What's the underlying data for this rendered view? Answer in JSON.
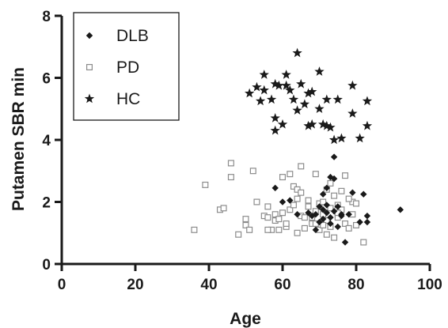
{
  "chart_data": {
    "type": "scatter",
    "title": "",
    "xlabel": "Age",
    "ylabel": "Putamen SBR min",
    "xlim": [
      0,
      100
    ],
    "ylim": [
      0,
      8
    ],
    "xticks": [
      0,
      20,
      40,
      60,
      80,
      100
    ],
    "yticks": [
      0,
      2,
      4,
      6,
      8
    ],
    "grid": false,
    "legend": "top-left",
    "series": [
      {
        "name": "DLB",
        "marker": "filled-diamond",
        "color": "#1a1a1a",
        "points": [
          [
            58,
            2.45
          ],
          [
            60,
            2.0
          ],
          [
            62,
            2.05
          ],
          [
            64,
            1.6
          ],
          [
            67,
            1.65
          ],
          [
            68,
            1.55
          ],
          [
            69,
            1.1
          ],
          [
            70,
            1.35
          ],
          [
            70,
            1.85
          ],
          [
            71,
            1.75
          ],
          [
            71,
            2.25
          ],
          [
            72,
            1.65
          ],
          [
            72,
            2.45
          ],
          [
            73,
            1.5
          ],
          [
            73,
            1.3
          ],
          [
            73,
            2.8
          ],
          [
            74,
            3.45
          ],
          [
            74,
            2.75
          ],
          [
            75,
            1.85
          ],
          [
            75,
            1.2
          ],
          [
            76,
            1.6
          ],
          [
            77,
            0.7
          ],
          [
            78,
            1.6
          ],
          [
            79,
            2.3
          ],
          [
            81,
            1.35
          ],
          [
            82,
            2.25
          ],
          [
            83,
            1.55
          ],
          [
            83,
            1.35
          ],
          [
            92,
            1.75
          ],
          [
            69,
            1.6
          ],
          [
            71,
            1.45
          ],
          [
            72,
            1.9
          ],
          [
            74,
            1.7
          ],
          [
            76,
            1.55
          ]
        ]
      },
      {
        "name": "PD",
        "marker": "open-square",
        "color": "#8c8c8c",
        "points": [
          [
            36,
            1.1
          ],
          [
            39,
            2.55
          ],
          [
            43,
            1.75
          ],
          [
            44,
            1.8
          ],
          [
            46,
            3.25
          ],
          [
            46,
            2.8
          ],
          [
            48,
            0.95
          ],
          [
            50,
            1.45
          ],
          [
            50,
            1.25
          ],
          [
            51,
            1.1
          ],
          [
            52,
            3.0
          ],
          [
            53,
            2.0
          ],
          [
            55,
            1.55
          ],
          [
            56,
            1.85
          ],
          [
            56,
            1.5
          ],
          [
            57,
            1.1
          ],
          [
            58,
            1.4
          ],
          [
            58,
            1.6
          ],
          [
            59,
            1.1
          ],
          [
            60,
            2.8
          ],
          [
            60,
            1.65
          ],
          [
            61,
            1.2
          ],
          [
            62,
            2.9
          ],
          [
            62,
            1.75
          ],
          [
            63,
            2.5
          ],
          [
            63,
            1.9
          ],
          [
            64,
            2.4
          ],
          [
            64,
            2.1
          ],
          [
            64,
            1.0
          ],
          [
            65,
            3.15
          ],
          [
            65,
            2.3
          ],
          [
            65,
            1.55
          ],
          [
            66,
            1.15
          ],
          [
            67,
            1.85
          ],
          [
            67,
            2.05
          ],
          [
            68,
            1.3
          ],
          [
            68,
            1.5
          ],
          [
            69,
            2.9
          ],
          [
            69,
            1.7
          ],
          [
            70,
            1.95
          ],
          [
            70,
            1.1
          ],
          [
            71,
            2.0
          ],
          [
            71,
            1.6
          ],
          [
            72,
            0.95
          ],
          [
            72,
            1.4
          ],
          [
            72,
            2.4
          ],
          [
            73,
            1.8
          ],
          [
            73,
            2.6
          ],
          [
            74,
            0.85
          ],
          [
            74,
            2.2
          ],
          [
            75,
            1.9
          ],
          [
            75,
            1.5
          ],
          [
            76,
            2.35
          ],
          [
            76,
            1.75
          ],
          [
            77,
            2.85
          ],
          [
            77,
            1.3
          ],
          [
            78,
            1.15
          ],
          [
            79,
            2.0
          ],
          [
            79,
            1.6
          ],
          [
            80,
            1.25
          ],
          [
            80,
            1.95
          ],
          [
            82,
            0.7
          ],
          [
            59,
            1.45
          ],
          [
            61,
            1.3
          ],
          [
            66,
            1.5
          ],
          [
            69,
            1.3
          ],
          [
            71,
            1.25
          ],
          [
            73,
            1.2
          ],
          [
            75,
            1.65
          ],
          [
            78,
            2.1
          ],
          [
            56,
            1.1
          ]
        ]
      },
      {
        "name": "HC",
        "marker": "filled-star",
        "color": "#1a1a1a",
        "points": [
          [
            51,
            5.5
          ],
          [
            53,
            5.7
          ],
          [
            54,
            5.25
          ],
          [
            55,
            6.1
          ],
          [
            55,
            5.6
          ],
          [
            57,
            5.3
          ],
          [
            58,
            5.8
          ],
          [
            58,
            4.7
          ],
          [
            58,
            4.3
          ],
          [
            59,
            5.75
          ],
          [
            60,
            4.5
          ],
          [
            61,
            6.1
          ],
          [
            61,
            5.75
          ],
          [
            62,
            5.6
          ],
          [
            63,
            5.3
          ],
          [
            64,
            6.8
          ],
          [
            64,
            4.95
          ],
          [
            65,
            5.8
          ],
          [
            66,
            5.15
          ],
          [
            67,
            4.45
          ],
          [
            67,
            5.5
          ],
          [
            68,
            4.5
          ],
          [
            68,
            5.55
          ],
          [
            70,
            6.2
          ],
          [
            70,
            5.0
          ],
          [
            71,
            4.5
          ],
          [
            72,
            5.3
          ],
          [
            72,
            4.45
          ],
          [
            73,
            4.4
          ],
          [
            74,
            4.0
          ],
          [
            75,
            5.3
          ],
          [
            76,
            4.05
          ],
          [
            79,
            5.75
          ],
          [
            79,
            4.85
          ],
          [
            81,
            4.05
          ],
          [
            83,
            5.25
          ],
          [
            83,
            4.45
          ]
        ]
      }
    ]
  }
}
